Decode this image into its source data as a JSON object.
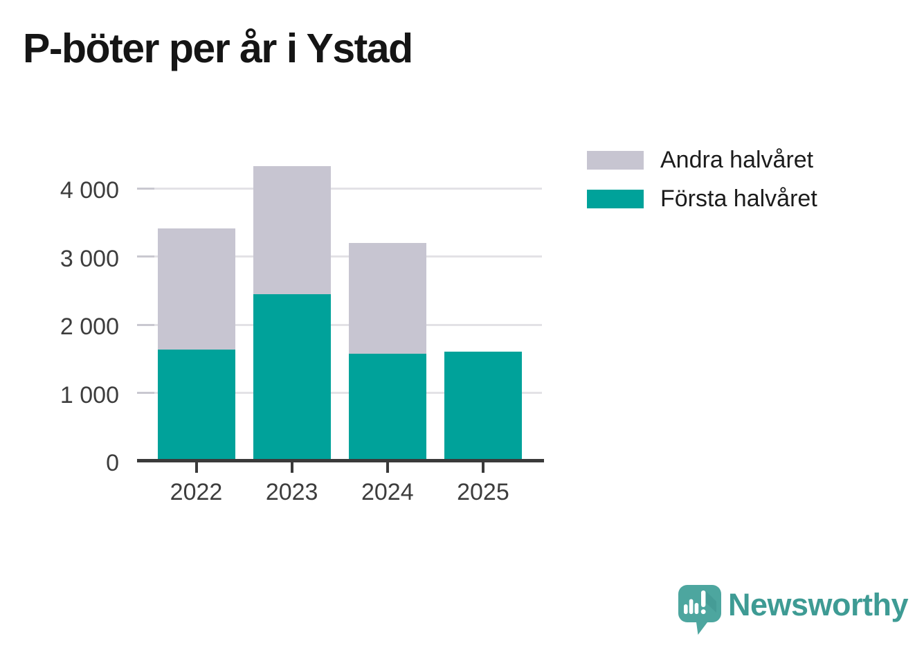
{
  "title": "P-böter per år i Ystad",
  "chart_data": {
    "type": "bar",
    "stacked": true,
    "title": "P-böter per år i Ystad",
    "categories": [
      "2022",
      "2023",
      "2024",
      "2025"
    ],
    "series": [
      {
        "name": "Andra halvåret",
        "color": "#c7c5d1",
        "values": [
          1770,
          1880,
          1630,
          0
        ]
      },
      {
        "name": "Första halvåret",
        "color": "#00a29a",
        "values": [
          1640,
          2450,
          1570,
          1600
        ]
      }
    ],
    "stack_bottom_to_top": [
      "Första halvåret",
      "Andra halvåret"
    ],
    "xlabel": "",
    "ylabel": "",
    "ylim": [
      0,
      4400
    ],
    "y_ticks": [
      {
        "value": 0,
        "label": "0"
      },
      {
        "value": 1000,
        "label": "1 000"
      },
      {
        "value": 2000,
        "label": "2 000"
      },
      {
        "value": 3000,
        "label": "3 000"
      },
      {
        "value": 4000,
        "label": "4 000"
      }
    ],
    "grid": "horizontal",
    "legend_position": "upper-right"
  },
  "colors": {
    "axis": "#3a3a3a",
    "gridline": "#e3e2e6",
    "tick_dash": "#c9c8d0",
    "label_text": "#3d3d3d",
    "title_text": "#151515",
    "teal": "#00a29a",
    "gray": "#c7c5d1",
    "brand": "#3e9b94"
  },
  "branding": {
    "wordmark": "Newsworthy"
  }
}
